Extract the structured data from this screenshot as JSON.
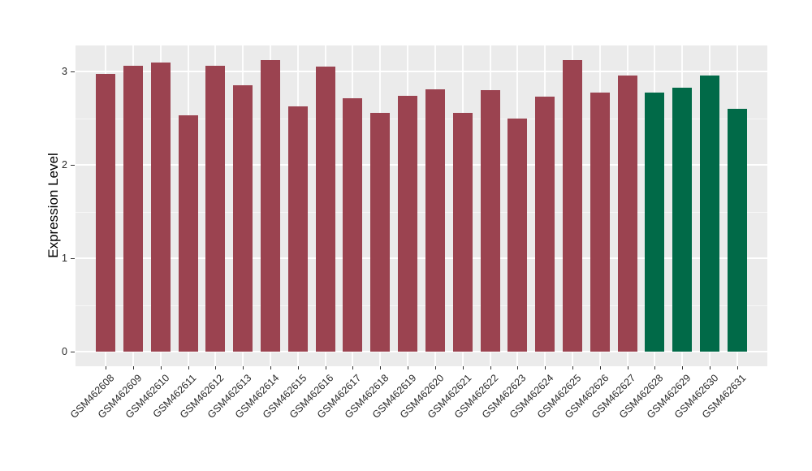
{
  "chart_data": {
    "type": "bar",
    "title": "",
    "xlabel": "",
    "ylabel": "Expression Level",
    "ylim": [
      -0.16,
      3.28
    ],
    "yticks": [
      0,
      1,
      2,
      3
    ],
    "yminor_step": 0.5,
    "grid": "major+minor, white on grey panel",
    "legend": "none",
    "panel_background": "#EBEBEB",
    "gridline_color": "#FFFFFF",
    "axis_text_color": "#282828",
    "categories": [
      "GSM462608",
      "GSM462609",
      "GSM462610",
      "GSM462611",
      "GSM462612",
      "GSM462613",
      "GSM462614",
      "GSM462615",
      "GSM462616",
      "GSM462617",
      "GSM462618",
      "GSM462619",
      "GSM462620",
      "GSM462621",
      "GSM462622",
      "GSM462623",
      "GSM462624",
      "GSM462625",
      "GSM462626",
      "GSM462627",
      "GSM462628",
      "GSM462629",
      "GSM462630",
      "GSM462631"
    ],
    "values": [
      2.97,
      3.06,
      3.1,
      2.53,
      3.06,
      2.85,
      3.12,
      2.63,
      3.05,
      2.71,
      2.56,
      2.74,
      2.81,
      2.56,
      2.8,
      2.5,
      2.73,
      3.12,
      2.77,
      2.96,
      2.77,
      2.83,
      2.96,
      2.6
    ],
    "bar_groups": [
      "group1",
      "group1",
      "group1",
      "group1",
      "group1",
      "group1",
      "group1",
      "group1",
      "group1",
      "group1",
      "group1",
      "group1",
      "group1",
      "group1",
      "group1",
      "group1",
      "group1",
      "group1",
      "group1",
      "group1",
      "group2",
      "group2",
      "group2",
      "group2"
    ],
    "palette": {
      "group1": "#9B4350",
      "group2": "#016A48"
    }
  }
}
